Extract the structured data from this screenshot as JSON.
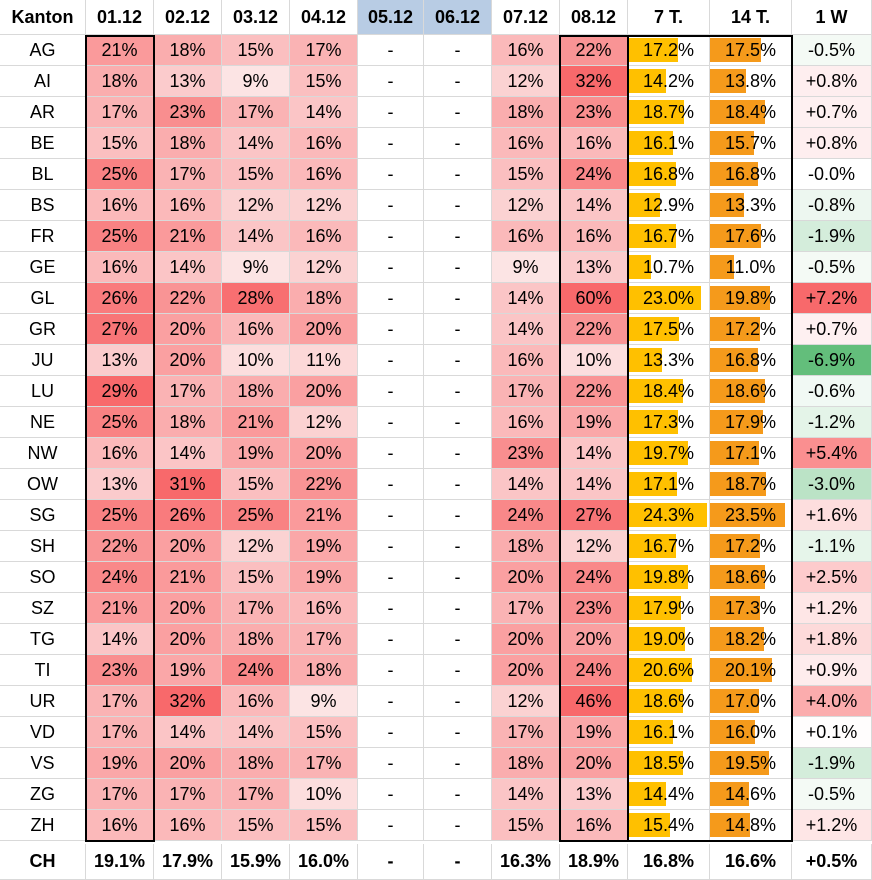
{
  "headers": [
    "Kanton",
    "01.12",
    "02.12",
    "03.12",
    "04.12",
    "05.12",
    "06.12",
    "07.12",
    "08.12",
    "7 T.",
    "14 T.",
    "1 W"
  ],
  "rows": [
    [
      "AG",
      "21%",
      "18%",
      "15%",
      "17%",
      "-",
      "-",
      "16%",
      "22%",
      "17.2%",
      "17.5%",
      "-0.5%"
    ],
    [
      "AI",
      "18%",
      "13%",
      "9%",
      "15%",
      "-",
      "-",
      "12%",
      "32%",
      "14.2%",
      "13.8%",
      "+0.8%"
    ],
    [
      "AR",
      "17%",
      "23%",
      "17%",
      "14%",
      "-",
      "-",
      "18%",
      "23%",
      "18.7%",
      "18.4%",
      "+0.7%"
    ],
    [
      "BE",
      "15%",
      "18%",
      "14%",
      "16%",
      "-",
      "-",
      "16%",
      "16%",
      "16.1%",
      "15.7%",
      "+0.8%"
    ],
    [
      "BL",
      "25%",
      "17%",
      "15%",
      "16%",
      "-",
      "-",
      "15%",
      "24%",
      "16.8%",
      "16.8%",
      "-0.0%"
    ],
    [
      "BS",
      "16%",
      "16%",
      "12%",
      "12%",
      "-",
      "-",
      "12%",
      "14%",
      "12.9%",
      "13.3%",
      "-0.8%"
    ],
    [
      "FR",
      "25%",
      "21%",
      "14%",
      "16%",
      "-",
      "-",
      "16%",
      "16%",
      "16.7%",
      "17.6%",
      "-1.9%"
    ],
    [
      "GE",
      "16%",
      "14%",
      "9%",
      "12%",
      "-",
      "-",
      "9%",
      "13%",
      "10.7%",
      "11.0%",
      "-0.5%"
    ],
    [
      "GL",
      "26%",
      "22%",
      "28%",
      "18%",
      "-",
      "-",
      "14%",
      "60%",
      "23.0%",
      "19.8%",
      "+7.2%"
    ],
    [
      "GR",
      "27%",
      "20%",
      "16%",
      "20%",
      "-",
      "-",
      "14%",
      "22%",
      "17.5%",
      "17.2%",
      "+0.7%"
    ],
    [
      "JU",
      "13%",
      "20%",
      "10%",
      "11%",
      "-",
      "-",
      "16%",
      "10%",
      "13.3%",
      "16.8%",
      "-6.9%"
    ],
    [
      "LU",
      "29%",
      "17%",
      "18%",
      "20%",
      "-",
      "-",
      "17%",
      "22%",
      "18.4%",
      "18.6%",
      "-0.6%"
    ],
    [
      "NE",
      "25%",
      "18%",
      "21%",
      "12%",
      "-",
      "-",
      "16%",
      "19%",
      "17.3%",
      "17.9%",
      "-1.2%"
    ],
    [
      "NW",
      "16%",
      "14%",
      "19%",
      "20%",
      "-",
      "-",
      "23%",
      "14%",
      "19.7%",
      "17.1%",
      "+5.4%"
    ],
    [
      "OW",
      "13%",
      "31%",
      "15%",
      "22%",
      "-",
      "-",
      "14%",
      "14%",
      "17.1%",
      "18.7%",
      "-3.0%"
    ],
    [
      "SG",
      "25%",
      "26%",
      "25%",
      "21%",
      "-",
      "-",
      "24%",
      "27%",
      "24.3%",
      "23.5%",
      "+1.6%"
    ],
    [
      "SH",
      "22%",
      "20%",
      "12%",
      "19%",
      "-",
      "-",
      "18%",
      "12%",
      "16.7%",
      "17.2%",
      "-1.1%"
    ],
    [
      "SO",
      "24%",
      "21%",
      "15%",
      "19%",
      "-",
      "-",
      "20%",
      "24%",
      "19.8%",
      "18.6%",
      "+2.5%"
    ],
    [
      "SZ",
      "21%",
      "20%",
      "17%",
      "16%",
      "-",
      "-",
      "17%",
      "23%",
      "17.9%",
      "17.3%",
      "+1.2%"
    ],
    [
      "TG",
      "14%",
      "20%",
      "18%",
      "17%",
      "-",
      "-",
      "20%",
      "20%",
      "19.0%",
      "18.2%",
      "+1.8%"
    ],
    [
      "TI",
      "23%",
      "19%",
      "24%",
      "18%",
      "-",
      "-",
      "20%",
      "24%",
      "20.6%",
      "20.1%",
      "+0.9%"
    ],
    [
      "UR",
      "17%",
      "32%",
      "16%",
      "9%",
      "-",
      "-",
      "12%",
      "46%",
      "18.6%",
      "17.0%",
      "+4.0%"
    ],
    [
      "VD",
      "17%",
      "14%",
      "14%",
      "15%",
      "-",
      "-",
      "17%",
      "19%",
      "16.1%",
      "16.0%",
      "+0.1%"
    ],
    [
      "VS",
      "19%",
      "20%",
      "18%",
      "17%",
      "-",
      "-",
      "18%",
      "20%",
      "18.5%",
      "19.5%",
      "-1.9%"
    ],
    [
      "ZG",
      "17%",
      "17%",
      "17%",
      "10%",
      "-",
      "-",
      "14%",
      "13%",
      "14.4%",
      "14.6%",
      "-0.5%"
    ],
    [
      "ZH",
      "16%",
      "16%",
      "15%",
      "15%",
      "-",
      "-",
      "15%",
      "16%",
      "15.4%",
      "14.8%",
      "+1.2%"
    ]
  ],
  "total": [
    "CH",
    "19.1%",
    "17.9%",
    "15.9%",
    "16.0%",
    "-",
    "-",
    "16.3%",
    "18.9%",
    "16.8%",
    "16.6%",
    "+0.5%"
  ],
  "colors": {
    "header_weekend_bg": "#b8cce4",
    "heat_low": "#fce4e4",
    "heat_high": "#f8696b",
    "bar_7t": "#ffc000",
    "bar_14t": "#f59a1b",
    "change_neg": "#63be7b",
    "change_pos": "#f8696b",
    "grid_line": "#d9d9d9"
  }
}
